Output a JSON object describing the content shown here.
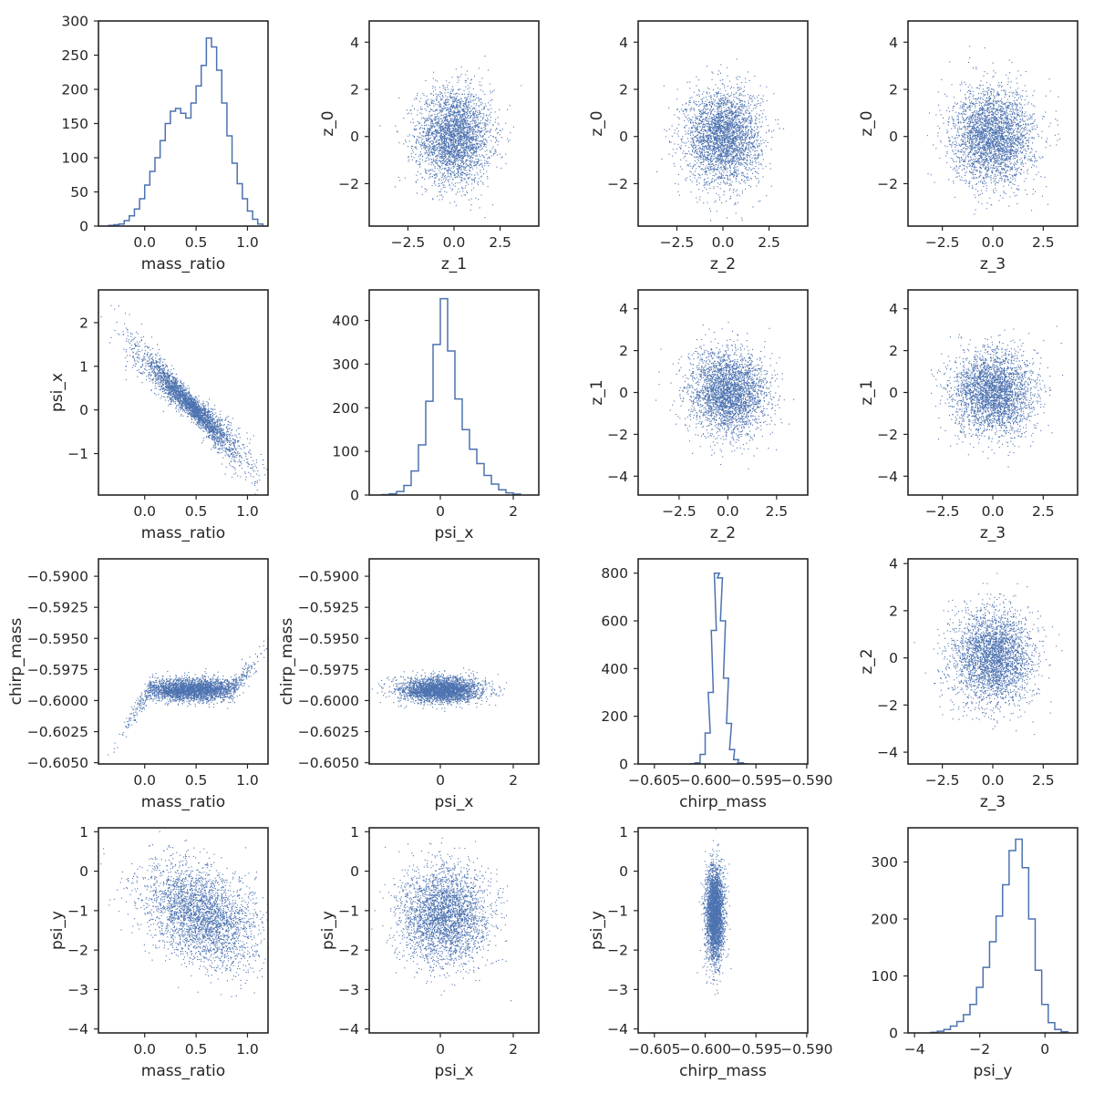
{
  "figure": {
    "type": "pairplot",
    "color": "#4c72b0"
  },
  "chart_data": [
    {
      "type": "histogram",
      "row": 0,
      "col": 0,
      "var": "mass_ratio",
      "xlabel": "mass_ratio",
      "ylabel": "",
      "xlim": [
        -0.45,
        1.2
      ],
      "ylim": [
        0,
        300
      ],
      "xticks": [
        0.0,
        0.5,
        1.0
      ],
      "yticks": [
        0,
        50,
        100,
        150,
        200,
        250,
        300
      ],
      "xticklabels": [
        "0.0",
        "0.5",
        "1.0"
      ],
      "yticklabels": [
        "0",
        "50",
        "100",
        "150",
        "200",
        "250",
        "300"
      ],
      "bins": [
        [
          -0.35,
          1
        ],
        [
          -0.3,
          2
        ],
        [
          -0.25,
          3
        ],
        [
          -0.2,
          8
        ],
        [
          -0.15,
          15
        ],
        [
          -0.1,
          25
        ],
        [
          -0.05,
          40
        ],
        [
          0.0,
          60
        ],
        [
          0.05,
          80
        ],
        [
          0.1,
          100
        ],
        [
          0.15,
          125
        ],
        [
          0.2,
          150
        ],
        [
          0.25,
          168
        ],
        [
          0.3,
          172
        ],
        [
          0.35,
          165
        ],
        [
          0.4,
          158
        ],
        [
          0.45,
          180
        ],
        [
          0.5,
          205
        ],
        [
          0.55,
          235
        ],
        [
          0.6,
          275
        ],
        [
          0.65,
          262
        ],
        [
          0.7,
          228
        ],
        [
          0.75,
          180
        ],
        [
          0.8,
          132
        ],
        [
          0.85,
          92
        ],
        [
          0.9,
          62
        ],
        [
          0.95,
          40
        ],
        [
          1.0,
          22
        ],
        [
          1.05,
          10
        ],
        [
          1.1,
          3
        ]
      ]
    },
    {
      "type": "scatter",
      "row": 0,
      "col": 1,
      "x_var": "z_1",
      "y_var": "z_0",
      "xlabel": "z_1",
      "ylabel": "z_0",
      "xlim": [
        -4.6,
        4.6
      ],
      "ylim": [
        -3.8,
        4.9
      ],
      "xticks": [
        -2.5,
        0.0,
        2.5
      ],
      "yticks": [
        -2,
        0,
        2,
        4
      ],
      "xticklabels": [
        "−2.5",
        "0.0",
        "2.5"
      ],
      "yticklabels": [
        "−2",
        "0",
        "2",
        "4"
      ],
      "model": "normal",
      "center": [
        0,
        0
      ],
      "spread": [
        1,
        1
      ],
      "n_points": 3000
    },
    {
      "type": "scatter",
      "row": 0,
      "col": 2,
      "x_var": "z_2",
      "y_var": "z_0",
      "xlabel": "z_2",
      "ylabel": "z_0",
      "xlim": [
        -4.6,
        4.6
      ],
      "ylim": [
        -3.8,
        4.9
      ],
      "xticks": [
        -2.5,
        0.0,
        2.5
      ],
      "yticks": [
        -2,
        0,
        2,
        4
      ],
      "xticklabels": [
        "−2.5",
        "0.0",
        "2.5"
      ],
      "yticklabels": [
        "−2",
        "0",
        "2",
        "4"
      ],
      "model": "normal",
      "center": [
        0,
        0
      ],
      "spread": [
        1,
        1
      ],
      "n_points": 3000
    },
    {
      "type": "scatter",
      "row": 0,
      "col": 3,
      "x_var": "z_3",
      "y_var": "z_0",
      "xlabel": "z_3",
      "ylabel": "z_0",
      "xlim": [
        -4.2,
        4.2
      ],
      "ylim": [
        -3.8,
        4.9
      ],
      "xticks": [
        -2.5,
        0.0,
        2.5
      ],
      "yticks": [
        -2,
        0,
        2,
        4
      ],
      "xticklabels": [
        "−2.5",
        "0.0",
        "2.5"
      ],
      "yticklabels": [
        "−2",
        "0",
        "2",
        "4"
      ],
      "model": "normal",
      "center": [
        0,
        0
      ],
      "spread": [
        1,
        1
      ],
      "n_points": 3000
    },
    {
      "type": "scatter",
      "row": 1,
      "col": 0,
      "x_var": "mass_ratio",
      "y_var": "psi_x",
      "xlabel": "mass_ratio",
      "ylabel": "psi_x",
      "xlim": [
        -0.45,
        1.2
      ],
      "ylim": [
        -1.95,
        2.75
      ],
      "xticks": [
        0.0,
        0.5,
        1.0
      ],
      "yticks": [
        -1,
        0,
        1,
        2
      ],
      "xticklabels": [
        "0.0",
        "0.5",
        "1.0"
      ],
      "yticklabels": [
        "−1",
        "0",
        "1",
        "2"
      ],
      "model": "anticorrelated",
      "center": [
        0.45,
        0.1
      ],
      "spread": [
        0.25,
        0.3
      ],
      "slope": -2.3,
      "n_points": 3000
    },
    {
      "type": "histogram",
      "row": 1,
      "col": 1,
      "var": "psi_x",
      "xlabel": "psi_x",
      "ylabel": "",
      "xlim": [
        -1.95,
        2.7
      ],
      "ylim": [
        0,
        470
      ],
      "xticks": [
        0,
        2
      ],
      "yticks": [
        0,
        100,
        200,
        300,
        400
      ],
      "xticklabels": [
        "0",
        "2"
      ],
      "yticklabels": [
        "0",
        "100",
        "200",
        "300",
        "400"
      ],
      "bins": [
        [
          -1.6,
          1
        ],
        [
          -1.4,
          3
        ],
        [
          -1.2,
          8
        ],
        [
          -1.0,
          22
        ],
        [
          -0.8,
          55
        ],
        [
          -0.6,
          115
        ],
        [
          -0.4,
          215
        ],
        [
          -0.2,
          345
        ],
        [
          0.0,
          450
        ],
        [
          0.2,
          330
        ],
        [
          0.4,
          220
        ],
        [
          0.6,
          150
        ],
        [
          0.8,
          105
        ],
        [
          1.0,
          72
        ],
        [
          1.2,
          45
        ],
        [
          1.4,
          25
        ],
        [
          1.6,
          12
        ],
        [
          1.8,
          5
        ],
        [
          2.0,
          2
        ]
      ]
    },
    {
      "type": "scatter",
      "row": 1,
      "col": 2,
      "x_var": "z_2",
      "y_var": "z_1",
      "xlabel": "z_2",
      "ylabel": "z_1",
      "xlim": [
        -4.6,
        4.1
      ],
      "ylim": [
        -4.9,
        4.9
      ],
      "xticks": [
        -2.5,
        0.0,
        2.5
      ],
      "yticks": [
        -4,
        -2,
        0,
        2,
        4
      ],
      "xticklabels": [
        "−2.5",
        "0.0",
        "2.5"
      ],
      "yticklabels": [
        "−4",
        "−2",
        "0",
        "2",
        "4"
      ],
      "model": "normal",
      "center": [
        0,
        0
      ],
      "spread": [
        1,
        1
      ],
      "n_points": 3000
    },
    {
      "type": "scatter",
      "row": 1,
      "col": 3,
      "x_var": "z_3",
      "y_var": "z_1",
      "xlabel": "z_3",
      "ylabel": "z_1",
      "xlim": [
        -4.2,
        4.2
      ],
      "ylim": [
        -4.9,
        4.9
      ],
      "xticks": [
        -2.5,
        0.0,
        2.5
      ],
      "yticks": [
        -4,
        -2,
        0,
        2,
        4
      ],
      "xticklabels": [
        "−2.5",
        "0.0",
        "2.5"
      ],
      "yticklabels": [
        "−4",
        "−2",
        "0",
        "2",
        "4"
      ],
      "model": "normal",
      "center": [
        0,
        0
      ],
      "spread": [
        1,
        1
      ],
      "n_points": 3000
    },
    {
      "type": "scatter",
      "row": 2,
      "col": 0,
      "x_var": "mass_ratio",
      "y_var": "chirp_mass",
      "xlabel": "mass_ratio",
      "ylabel": "chirp_mass",
      "xlim": [
        -0.45,
        1.2
      ],
      "ylim": [
        -0.6051,
        -0.5886
      ],
      "xticks": [
        0.0,
        0.5,
        1.0
      ],
      "yticks": [
        -0.605,
        -0.6025,
        -0.6,
        -0.5975,
        -0.595,
        -0.5925,
        -0.59
      ],
      "xticklabels": [
        "0.0",
        "0.5",
        "1.0"
      ],
      "yticklabels": [
        "−0.6050",
        "−0.6025",
        "−0.6000",
        "−0.5975",
        "−0.5950",
        "−0.5925",
        "−0.5900"
      ],
      "model": "curve",
      "center": [
        0.45,
        -0.5991
      ],
      "spread": [
        0.25,
        0.00045
      ],
      "n_points": 3000
    },
    {
      "type": "scatter",
      "row": 2,
      "col": 1,
      "x_var": "psi_x",
      "y_var": "chirp_mass",
      "xlabel": "psi_x",
      "ylabel": "chirp_mass",
      "xlim": [
        -1.95,
        2.7
      ],
      "ylim": [
        -0.6051,
        -0.5886
      ],
      "xticks": [
        0,
        2
      ],
      "yticks": [
        -0.605,
        -0.6025,
        -0.6,
        -0.5975,
        -0.595,
        -0.5925,
        -0.59
      ],
      "xticklabels": [
        "0",
        "2"
      ],
      "yticklabels": [
        "−0.6050",
        "−0.6025",
        "−0.6000",
        "−0.5975",
        "−0.5950",
        "−0.5925",
        "−0.5900"
      ],
      "model": "normal",
      "center": [
        0.0,
        -0.5991
      ],
      "spread": [
        0.55,
        0.0005
      ],
      "n_points": 3000
    },
    {
      "type": "histogram",
      "row": 2,
      "col": 2,
      "var": "chirp_mass",
      "xlabel": "chirp_mass",
      "ylabel": "",
      "xlim": [
        -0.6066,
        -0.5899
      ],
      "ylim": [
        0,
        860
      ],
      "xticks": [
        -0.605,
        -0.6,
        -0.595,
        -0.59
      ],
      "yticks": [
        0,
        200,
        400,
        600,
        800
      ],
      "xticklabels": [
        "−0.605",
        "−0.600",
        "−0.595",
        "−0.590"
      ],
      "yticklabels": [
        "0",
        "200",
        "400",
        "600",
        "800"
      ],
      "bins": [
        [
          -0.6015,
          1
        ],
        [
          -0.601,
          5
        ],
        [
          -0.6005,
          40
        ],
        [
          -0.6,
          130
        ],
        [
          -0.5997,
          300
        ],
        [
          -0.5994,
          560
        ],
        [
          -0.5991,
          800
        ],
        [
          -0.5988,
          780
        ],
        [
          -0.5985,
          600
        ],
        [
          -0.5982,
          360
        ],
        [
          -0.5979,
          170
        ],
        [
          -0.5976,
          60
        ],
        [
          -0.5972,
          18
        ],
        [
          -0.5968,
          5
        ],
        [
          -0.5964,
          1
        ]
      ]
    },
    {
      "type": "scatter",
      "row": 2,
      "col": 3,
      "x_var": "z_3",
      "y_var": "z_2",
      "xlabel": "z_3",
      "ylabel": "z_2",
      "xlim": [
        -4.2,
        4.2
      ],
      "ylim": [
        -4.5,
        4.2
      ],
      "xticks": [
        -2.5,
        0.0,
        2.5
      ],
      "yticks": [
        -4,
        -2,
        0,
        2,
        4
      ],
      "xticklabels": [
        "−2.5",
        "0.0",
        "2.5"
      ],
      "yticklabels": [
        "−4",
        "−2",
        "0",
        "2",
        "4"
      ],
      "model": "normal",
      "center": [
        0,
        0
      ],
      "spread": [
        1,
        1
      ],
      "n_points": 3000
    },
    {
      "type": "scatter",
      "row": 3,
      "col": 0,
      "x_var": "mass_ratio",
      "y_var": "psi_y",
      "xlabel": "mass_ratio",
      "ylabel": "psi_y",
      "xlim": [
        -0.45,
        1.2
      ],
      "ylim": [
        -4.1,
        1.1
      ],
      "xticks": [
        0.0,
        0.5,
        1.0
      ],
      "yticks": [
        -4,
        -3,
        -2,
        -1,
        0,
        1
      ],
      "xticklabels": [
        "0.0",
        "0.5",
        "1.0"
      ],
      "yticklabels": [
        "−4",
        "−3",
        "−2",
        "−1",
        "0",
        "1"
      ],
      "model": "wedge",
      "center": [
        0.55,
        -1.1
      ],
      "spread": [
        0.28,
        0.6
      ],
      "n_points": 3000
    },
    {
      "type": "scatter",
      "row": 3,
      "col": 1,
      "x_var": "psi_x",
      "y_var": "psi_y",
      "xlabel": "psi_x",
      "ylabel": "psi_y",
      "xlim": [
        -1.95,
        2.7
      ],
      "ylim": [
        -4.1,
        1.1
      ],
      "xticks": [
        0,
        2
      ],
      "yticks": [
        -4,
        -3,
        -2,
        -1,
        0,
        1
      ],
      "xticklabels": [
        "0",
        "2"
      ],
      "yticklabels": [
        "−4",
        "−3",
        "−2",
        "−1",
        "0",
        "1"
      ],
      "model": "normal",
      "center": [
        0.1,
        -1.1
      ],
      "spread": [
        0.6,
        0.6
      ],
      "n_points": 3000
    },
    {
      "type": "scatter",
      "row": 3,
      "col": 2,
      "x_var": "chirp_mass",
      "y_var": "psi_y",
      "xlabel": "chirp_mass",
      "ylabel": "psi_y",
      "xlim": [
        -0.6066,
        -0.5899
      ],
      "ylim": [
        -4.1,
        1.1
      ],
      "xticks": [
        -0.605,
        -0.6,
        -0.595,
        -0.59
      ],
      "yticks": [
        -4,
        -3,
        -2,
        -1,
        0,
        1
      ],
      "xticklabels": [
        "−0.605",
        "−0.600",
        "−0.595",
        "−0.590"
      ],
      "yticklabels": [
        "−4",
        "−3",
        "−2",
        "−1",
        "0",
        "1"
      ],
      "model": "normal",
      "center": [
        -0.5991,
        -1.1
      ],
      "spread": [
        0.00045,
        0.6
      ],
      "n_points": 3000
    },
    {
      "type": "histogram",
      "row": 3,
      "col": 3,
      "var": "psi_y",
      "xlabel": "psi_y",
      "ylabel": "",
      "xlim": [
        -4.2,
        1.0
      ],
      "ylim": [
        0,
        360
      ],
      "xticks": [
        -4,
        -2,
        0
      ],
      "yticks": [
        0,
        100,
        200,
        300
      ],
      "xticklabels": [
        "−4",
        "−2",
        "0"
      ],
      "yticklabels": [
        "0",
        "100",
        "200",
        "300"
      ],
      "bins": [
        [
          -3.5,
          1
        ],
        [
          -3.3,
          3
        ],
        [
          -3.1,
          6
        ],
        [
          -2.9,
          12
        ],
        [
          -2.7,
          20
        ],
        [
          -2.5,
          32
        ],
        [
          -2.3,
          50
        ],
        [
          -2.1,
          80
        ],
        [
          -1.9,
          115
        ],
        [
          -1.7,
          160
        ],
        [
          -1.5,
          205
        ],
        [
          -1.3,
          260
        ],
        [
          -1.1,
          320
        ],
        [
          -0.9,
          340
        ],
        [
          -0.7,
          290
        ],
        [
          -0.5,
          200
        ],
        [
          -0.3,
          110
        ],
        [
          -0.1,
          50
        ],
        [
          0.1,
          18
        ],
        [
          0.3,
          6
        ],
        [
          0.5,
          2
        ]
      ]
    }
  ]
}
